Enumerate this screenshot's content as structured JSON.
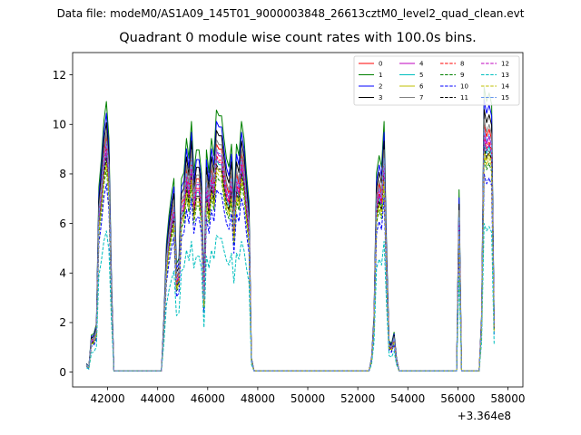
{
  "figure": {
    "suptitle": "Data file: modeM0/AS1A09_145T01_9000003848_26613cztM0_level2_quad_clean.evt",
    "offset_text": "+3.364e8"
  },
  "chart_data": {
    "type": "line",
    "title": "Quadrant 0 module wise count rates with 100.0s bins.",
    "xlabel": "",
    "ylabel": "",
    "x_offset": 336400000,
    "xlim": [
      40600,
      58600
    ],
    "ylim": [
      -0.6,
      12.9
    ],
    "xticks": [
      42000,
      44000,
      46000,
      48000,
      50000,
      52000,
      54000,
      56000,
      58000
    ],
    "yticks": [
      0,
      2,
      4,
      6,
      8,
      10,
      12
    ],
    "grid": false,
    "legend": {
      "placement": "top-right",
      "columns": 4
    },
    "x": [
      41150,
      41250,
      41350,
      41450,
      41550,
      41650,
      41750,
      41850,
      41950,
      42050,
      42150,
      42250,
      42350,
      44150,
      44250,
      44350,
      44450,
      44550,
      44650,
      44750,
      44850,
      44950,
      45050,
      45150,
      45250,
      45350,
      45450,
      45550,
      45650,
      45750,
      45850,
      45950,
      46050,
      46150,
      46250,
      46350,
      46450,
      46550,
      46650,
      46750,
      46850,
      46950,
      47050,
      47150,
      47250,
      47350,
      47450,
      47550,
      47650,
      47750,
      47850,
      47950,
      48050,
      48150,
      52450,
      52550,
      52650,
      52750,
      52850,
      52950,
      53050,
      53150,
      53250,
      53350,
      53450,
      53550,
      53650,
      53750,
      53850,
      55950,
      56050,
      56150,
      56250,
      56850,
      56950,
      57050,
      57150,
      57250,
      57350,
      57450
    ],
    "base": [
      0.3,
      0.2,
      1.3,
      1.35,
      1.7,
      6.5,
      7.5,
      8.8,
      9.5,
      8.2,
      3.5,
      0.05,
      0.05,
      0.05,
      2.0,
      4.5,
      5.5,
      6.2,
      6.8,
      3.8,
      4.0,
      6.8,
      7.0,
      8.2,
      7.5,
      8.8,
      7.0,
      7.8,
      7.8,
      7.0,
      3.0,
      7.8,
      7.0,
      8.2,
      7.6,
      9.2,
      9.0,
      9.0,
      8.2,
      7.5,
      7.2,
      8.0,
      6.0,
      8.0,
      7.6,
      8.8,
      8.2,
      7.0,
      6.0,
      0.5,
      0.05,
      0.05,
      0.05,
      0.05,
      0.05,
      0.5,
      2.0,
      7.0,
      7.6,
      7.2,
      8.8,
      4.5,
      1.1,
      1.0,
      1.4,
      0.5,
      0.05,
      0.05,
      0.05,
      0.05,
      6.4,
      0.05,
      0.05,
      0.05,
      2.0,
      10.0,
      9.5,
      9.8,
      9.4,
      1.9
    ],
    "series": [
      {
        "name": "0",
        "color": "#ff0000",
        "dash": false,
        "factor": 1.0
      },
      {
        "name": "1",
        "color": "#008000",
        "dash": false,
        "factor": 1.15
      },
      {
        "name": "2",
        "color": "#0000ff",
        "dash": false,
        "factor": 1.1
      },
      {
        "name": "3",
        "color": "#000000",
        "dash": false,
        "factor": 1.06
      },
      {
        "name": "4",
        "color": "#bf00bf",
        "dash": false,
        "factor": 0.97
      },
      {
        "name": "5",
        "color": "#00bfbf",
        "dash": false,
        "factor": 0.93
      },
      {
        "name": "6",
        "color": "#bfbf00",
        "dash": false,
        "factor": 0.9
      },
      {
        "name": "7",
        "color": "#808080",
        "dash": false,
        "factor": 1.02
      },
      {
        "name": "8",
        "color": "#ff0000",
        "dash": true,
        "factor": 0.95
      },
      {
        "name": "9",
        "color": "#008000",
        "dash": true,
        "factor": 0.86
      },
      {
        "name": "10",
        "color": "#0000ff",
        "dash": true,
        "factor": 0.8
      },
      {
        "name": "11",
        "color": "#000000",
        "dash": true,
        "factor": 0.91
      },
      {
        "name": "12",
        "color": "#bf00bf",
        "dash": true,
        "factor": 0.94
      },
      {
        "name": "13",
        "color": "#00bfbf",
        "dash": true,
        "factor": 0.6
      },
      {
        "name": "14",
        "color": "#bfbf00",
        "dash": true,
        "factor": 0.88
      },
      {
        "name": "15",
        "color": "#6495ed",
        "dash": true,
        "factor": 0.98
      }
    ]
  }
}
